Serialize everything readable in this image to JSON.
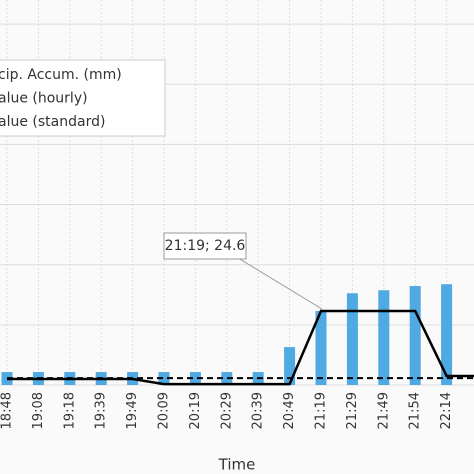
{
  "chart_data": {
    "type": "bar",
    "xlabel": "Time",
    "categories": [
      "18:48",
      "19:08",
      "19:18",
      "19:39",
      "19:49",
      "20:09",
      "20:19",
      "20:29",
      "20:39",
      "20:49",
      "21:19",
      "21:29",
      "21:49",
      "21:54",
      "22:14",
      null
    ],
    "series": [
      {
        "name": "cip. Accum. (mm)",
        "kind": "bar",
        "color": "#4fa9e2",
        "values": [
          4.3,
          4.3,
          4.3,
          4.3,
          4.3,
          4.3,
          4.3,
          4.3,
          4.3,
          12.6,
          24.6,
          30.5,
          31.5,
          32.9,
          33.5,
          null
        ]
      },
      {
        "name": "alue (hourly)",
        "kind": "line",
        "color": "#000000",
        "dash": false,
        "values": [
          2.0,
          2.0,
          2.0,
          2.0,
          2.0,
          0.3,
          0.3,
          0.3,
          0.3,
          0.3,
          24.6,
          24.6,
          24.6,
          24.6,
          3.0,
          3.0
        ]
      },
      {
        "name": "alue (standard)",
        "kind": "line",
        "color": "#000000",
        "dash": true,
        "values": [
          2.3,
          2.3,
          2.3,
          2.3,
          2.3,
          2.3,
          2.3,
          2.3,
          2.3,
          2.3,
          2.3,
          2.3,
          2.3,
          2.3,
          2.3,
          2.3
        ]
      }
    ],
    "annotation": "21:19; 24.6",
    "ylim": [
      0,
      128
    ],
    "yticks": [
      0,
      20,
      40,
      60,
      80,
      100,
      120
    ],
    "grid": true
  }
}
